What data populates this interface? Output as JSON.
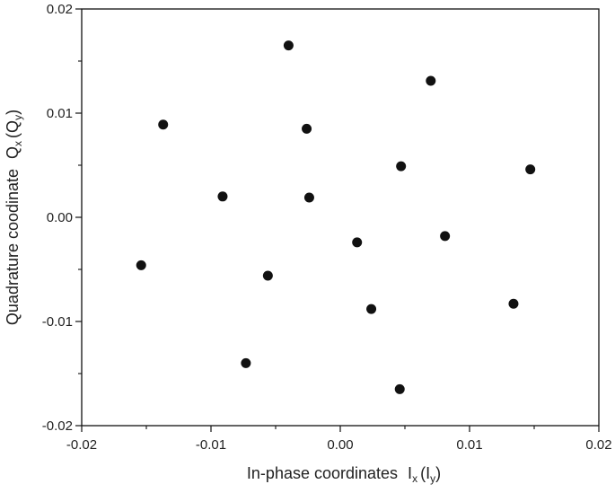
{
  "chart_data": {
    "type": "scatter",
    "title": "",
    "xlabel": {
      "main": "In-phase coordinates",
      "symbol": "I",
      "subscript": "x",
      "paren_symbol": "I",
      "paren_subscript": "y"
    },
    "ylabel": {
      "main": "Quadrature coodinate",
      "symbol": "Q",
      "subscript": "x",
      "paren_symbol": "Q",
      "paren_subscript": "y"
    },
    "xlim": [
      -0.02,
      0.02
    ],
    "ylim": [
      -0.02,
      0.02
    ],
    "x_ticks": [
      -0.02,
      -0.01,
      0.0,
      0.01,
      0.02
    ],
    "x_tick_labels": [
      "-0.02",
      "-0.01",
      "0.00",
      "0.01",
      "0.02"
    ],
    "y_ticks": [
      -0.02,
      -0.01,
      0.0,
      0.01,
      0.02
    ],
    "y_tick_labels": [
      "-0.02",
      "-0.01",
      "0.00",
      "0.01",
      "0.02"
    ],
    "grid": false,
    "legend": "none",
    "marker_color": "#111111",
    "points": [
      {
        "x": -0.004,
        "y": 0.0165
      },
      {
        "x": 0.007,
        "y": 0.0131
      },
      {
        "x": -0.0137,
        "y": 0.0089
      },
      {
        "x": -0.0026,
        "y": 0.0085
      },
      {
        "x": 0.0047,
        "y": 0.0049
      },
      {
        "x": 0.0147,
        "y": 0.0046
      },
      {
        "x": -0.0091,
        "y": 0.002
      },
      {
        "x": -0.0024,
        "y": 0.0019
      },
      {
        "x": 0.0081,
        "y": -0.0018
      },
      {
        "x": 0.0013,
        "y": -0.0024
      },
      {
        "x": -0.0154,
        "y": -0.0046
      },
      {
        "x": -0.0056,
        "y": -0.0056
      },
      {
        "x": 0.0024,
        "y": -0.0088
      },
      {
        "x": 0.0134,
        "y": -0.0083
      },
      {
        "x": -0.0073,
        "y": -0.014
      },
      {
        "x": 0.0046,
        "y": -0.0165
      }
    ]
  }
}
